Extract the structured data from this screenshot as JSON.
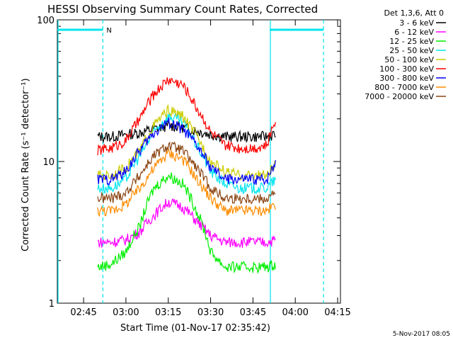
{
  "chart_data": {
    "type": "line",
    "title": "HESSI Observing Summary Count Rates, Corrected",
    "xlabel": "Start Time (01-Nov-17 02:35:42)",
    "ylabel": "Corrected Count Rate (s⁻¹ detector⁻¹)",
    "y_scale": "log",
    "ylim": [
      1,
      100
    ],
    "xlim": [
      "02:35:42",
      "04:16:00"
    ],
    "x_ticks": [
      "02:45",
      "03:00",
      "03:15",
      "03:30",
      "03:45",
      "04:00",
      "04:15"
    ],
    "y_ticks": [
      "1",
      "10",
      "100"
    ],
    "legend_header": "Det 1,3,6, Att 0",
    "legend_position": "right",
    "grid": false,
    "x": [
      "02:50",
      "02:55",
      "03:00",
      "03:05",
      "03:10",
      "03:15",
      "03:20",
      "03:25",
      "03:30",
      "03:35",
      "03:40",
      "03:45",
      "03:50",
      "03:53"
    ],
    "series": [
      {
        "name": "3 - 6 keV",
        "color": "#000000",
        "values": [
          15,
          15,
          15.5,
          16,
          17,
          18,
          17.5,
          16.5,
          15.5,
          15,
          15,
          15,
          15,
          15.5
        ]
      },
      {
        "name": "6 - 12 keV",
        "color": "#ff00ff",
        "values": [
          2.7,
          2.7,
          2.8,
          3.2,
          4.2,
          5.2,
          4.8,
          3.8,
          3.0,
          2.7,
          2.7,
          2.7,
          2.7,
          2.8
        ]
      },
      {
        "name": "12 - 25 keV",
        "color": "#00ee00",
        "values": [
          1.8,
          1.9,
          2.3,
          3.5,
          6.5,
          8.0,
          7.0,
          4.5,
          2.3,
          1.8,
          1.8,
          1.8,
          1.8,
          1.9
        ]
      },
      {
        "name": "25 - 50 keV",
        "color": "#00e5ee",
        "values": [
          6.5,
          6.5,
          7.5,
          11,
          16,
          21,
          19,
          13,
          8.5,
          7,
          6.5,
          6.5,
          6.5,
          7.5
        ]
      },
      {
        "name": "50 - 100 keV",
        "color": "#cccc00",
        "values": [
          8,
          8,
          9,
          12,
          18,
          23,
          21,
          15,
          10,
          8.5,
          8,
          8,
          8,
          9.5
        ]
      },
      {
        "name": "100 - 300 keV",
        "color": "#ff0000",
        "values": [
          12,
          12.5,
          14,
          20,
          30,
          38,
          35,
          24,
          16,
          13,
          12.5,
          12.5,
          13,
          20
        ]
      },
      {
        "name": "300 - 800 keV",
        "color": "#0000ff",
        "values": [
          7.5,
          7.5,
          8.5,
          12,
          16,
          19,
          17,
          13,
          9,
          7.5,
          7.5,
          7.5,
          7.5,
          10
        ]
      },
      {
        "name": "800 - 7000 keV",
        "color": "#ff8c00",
        "values": [
          4.5,
          4.5,
          5,
          6.5,
          9,
          11.5,
          10.5,
          7.5,
          5.5,
          4.5,
          4.5,
          4.5,
          4.5,
          5
        ]
      },
      {
        "name": "7000 - 20000 keV",
        "color": "#8b4513",
        "values": [
          5.5,
          5.5,
          6,
          8,
          11,
          13,
          12,
          9,
          6.5,
          5.5,
          5.5,
          5.5,
          5.5,
          6
        ]
      }
    ],
    "markers": {
      "cyan_dashed_times": [
        "02:51:50",
        "04:10:00"
      ],
      "cyan_solid_times": [
        "02:35:42",
        "03:50:55"
      ],
      "night_label": "N"
    }
  },
  "footer_date": "5-Nov-2017 08:05"
}
